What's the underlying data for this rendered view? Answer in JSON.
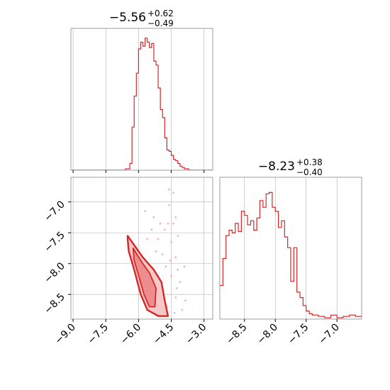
{
  "chart_data": [
    {
      "type": "histogram",
      "panel": "marginal-param-1",
      "title": {
        "main": "−5.56",
        "sup": "+0.62",
        "sub": "−0.49"
      },
      "xlim": [
        -9.1,
        -2.6
      ],
      "xticks": [
        -9.0,
        -7.5,
        -6.0,
        -4.5,
        -3.0
      ],
      "grid": true,
      "color": "#d62728",
      "bins": [
        [
          -9.1,
          0
        ],
        [
          -6.6,
          0.01
        ],
        [
          -6.4,
          0.05
        ],
        [
          -6.3,
          0.32
        ],
        [
          -6.2,
          0.55
        ],
        [
          -6.1,
          0.72
        ],
        [
          -6.0,
          0.9
        ],
        [
          -5.9,
          0.95
        ],
        [
          -5.8,
          0.92
        ],
        [
          -5.7,
          0.98
        ],
        [
          -5.6,
          0.95
        ],
        [
          -5.5,
          0.91
        ],
        [
          -5.4,
          0.94
        ],
        [
          -5.3,
          0.81
        ],
        [
          -5.2,
          0.78
        ],
        [
          -5.1,
          0.61
        ],
        [
          -5.0,
          0.45
        ],
        [
          -4.9,
          0.39
        ],
        [
          -4.8,
          0.24
        ],
        [
          -4.7,
          0.15
        ],
        [
          -4.6,
          0.14
        ],
        [
          -4.5,
          0.11
        ],
        [
          -4.4,
          0.08
        ],
        [
          -4.3,
          0.07
        ],
        [
          -4.2,
          0.05
        ],
        [
          -4.1,
          0.03
        ],
        [
          -4.0,
          0.02
        ],
        [
          -3.9,
          0.01
        ],
        [
          -3.8,
          0.01
        ],
        [
          -3.7,
          0.0
        ]
      ]
    },
    {
      "type": "histogram",
      "panel": "marginal-param-2",
      "title": {
        "main": "−8.23",
        "sup": "+0.38",
        "sub": "−0.40"
      },
      "xlim": [
        -8.9,
        -6.6
      ],
      "xticks": [
        -8.5,
        -8.0,
        -7.5,
        -7.0
      ],
      "grid": true,
      "color": "#d62728",
      "bins": [
        [
          -8.9,
          0.25
        ],
        [
          -8.85,
          0.45
        ],
        [
          -8.8,
          0.62
        ],
        [
          -8.75,
          0.66
        ],
        [
          -8.7,
          0.64
        ],
        [
          -8.65,
          0.71
        ],
        [
          -8.6,
          0.65
        ],
        [
          -8.55,
          0.8
        ],
        [
          -8.5,
          0.77
        ],
        [
          -8.45,
          0.7
        ],
        [
          -8.4,
          0.73
        ],
        [
          -8.35,
          0.66
        ],
        [
          -8.3,
          0.75
        ],
        [
          -8.25,
          0.88
        ],
        [
          -8.2,
          0.83
        ],
        [
          -8.15,
          0.93
        ],
        [
          -8.1,
          0.94
        ],
        [
          -8.05,
          0.83
        ],
        [
          -8.0,
          0.8
        ],
        [
          -7.95,
          0.68
        ],
        [
          -7.9,
          0.73
        ],
        [
          -7.85,
          0.61
        ],
        [
          -7.8,
          0.53
        ],
        [
          -7.75,
          0.28
        ],
        [
          -7.7,
          0.53
        ],
        [
          -7.65,
          0.2
        ],
        [
          -7.6,
          0.16
        ],
        [
          -7.55,
          0.1
        ],
        [
          -7.5,
          0.06
        ],
        [
          -7.45,
          0.04
        ],
        [
          -7.4,
          0.03
        ],
        [
          -7.3,
          0.02
        ],
        [
          -7.2,
          0.01
        ],
        [
          -7.1,
          0.03
        ],
        [
          -7.0,
          0.01
        ],
        [
          -6.9,
          0.02
        ],
        [
          -6.8,
          0.03
        ],
        [
          -6.7,
          0.02
        ],
        [
          -6.6,
          0.02
        ]
      ]
    },
    {
      "type": "contour",
      "panel": "joint-param-1-vs-param-2",
      "xlim": [
        -9.1,
        -2.6
      ],
      "ylim": [
        -8.9,
        -6.6
      ],
      "xticks": [
        -9.0,
        -7.5,
        -6.0,
        -4.5,
        -3.0
      ],
      "yticks": [
        -7.0,
        -7.5,
        -8.0,
        -8.5
      ],
      "grid": true,
      "color": "#d62728",
      "contours": [
        {
          "level": "outer",
          "points": [
            [
              -6.5,
              -7.55
            ],
            [
              -6.2,
              -7.7
            ],
            [
              -5.8,
              -7.9
            ],
            [
              -5.3,
              -8.1
            ],
            [
              -4.95,
              -8.3
            ],
            [
              -4.8,
              -8.6
            ],
            [
              -4.65,
              -8.85
            ],
            [
              -5.1,
              -8.85
            ],
            [
              -5.6,
              -8.75
            ],
            [
              -5.9,
              -8.5
            ],
            [
              -6.2,
              -8.1
            ],
            [
              -6.45,
              -7.8
            ],
            [
              -6.5,
              -7.6
            ]
          ]
        },
        {
          "level": "inner",
          "points": [
            [
              -6.25,
              -7.75
            ],
            [
              -5.9,
              -7.95
            ],
            [
              -5.5,
              -8.15
            ],
            [
              -5.2,
              -8.4
            ],
            [
              -5.25,
              -8.7
            ],
            [
              -5.5,
              -8.7
            ],
            [
              -5.75,
              -8.5
            ],
            [
              -5.95,
              -8.25
            ],
            [
              -6.2,
              -7.95
            ]
          ]
        }
      ],
      "scatter": [
        [
          -4.4,
          -6.85
        ],
        [
          -4.6,
          -7.05
        ],
        [
          -4.3,
          -7.25
        ],
        [
          -5.0,
          -7.35
        ],
        [
          -4.5,
          -7.65
        ],
        [
          -4.3,
          -7.9
        ],
        [
          -4.2,
          -8.1
        ],
        [
          -4.5,
          -8.2
        ],
        [
          -4.1,
          -8.3
        ],
        [
          -4.3,
          -8.55
        ],
        [
          -4.7,
          -8.7
        ],
        [
          -4.0,
          -8.75
        ],
        [
          -5.3,
          -7.25
        ],
        [
          -4.8,
          -7.45
        ],
        [
          -4.4,
          -7.35
        ],
        [
          -4.2,
          -7.55
        ],
        [
          -5.1,
          -7.6
        ],
        [
          -3.9,
          -8.05
        ],
        [
          -5.7,
          -7.15
        ],
        [
          -4.6,
          -6.8
        ],
        [
          -5.4,
          -7.45
        ],
        [
          -4.55,
          -7.95
        ],
        [
          -4.25,
          -8.4
        ],
        [
          -3.85,
          -8.6
        ],
        [
          -4.75,
          -8.05
        ],
        [
          -5.2,
          -7.8
        ],
        [
          -4.65,
          -7.35
        ],
        [
          -4.35,
          -8.8
        ],
        [
          -5.6,
          -7.6
        ],
        [
          -4.9,
          -7.85
        ]
      ]
    }
  ]
}
